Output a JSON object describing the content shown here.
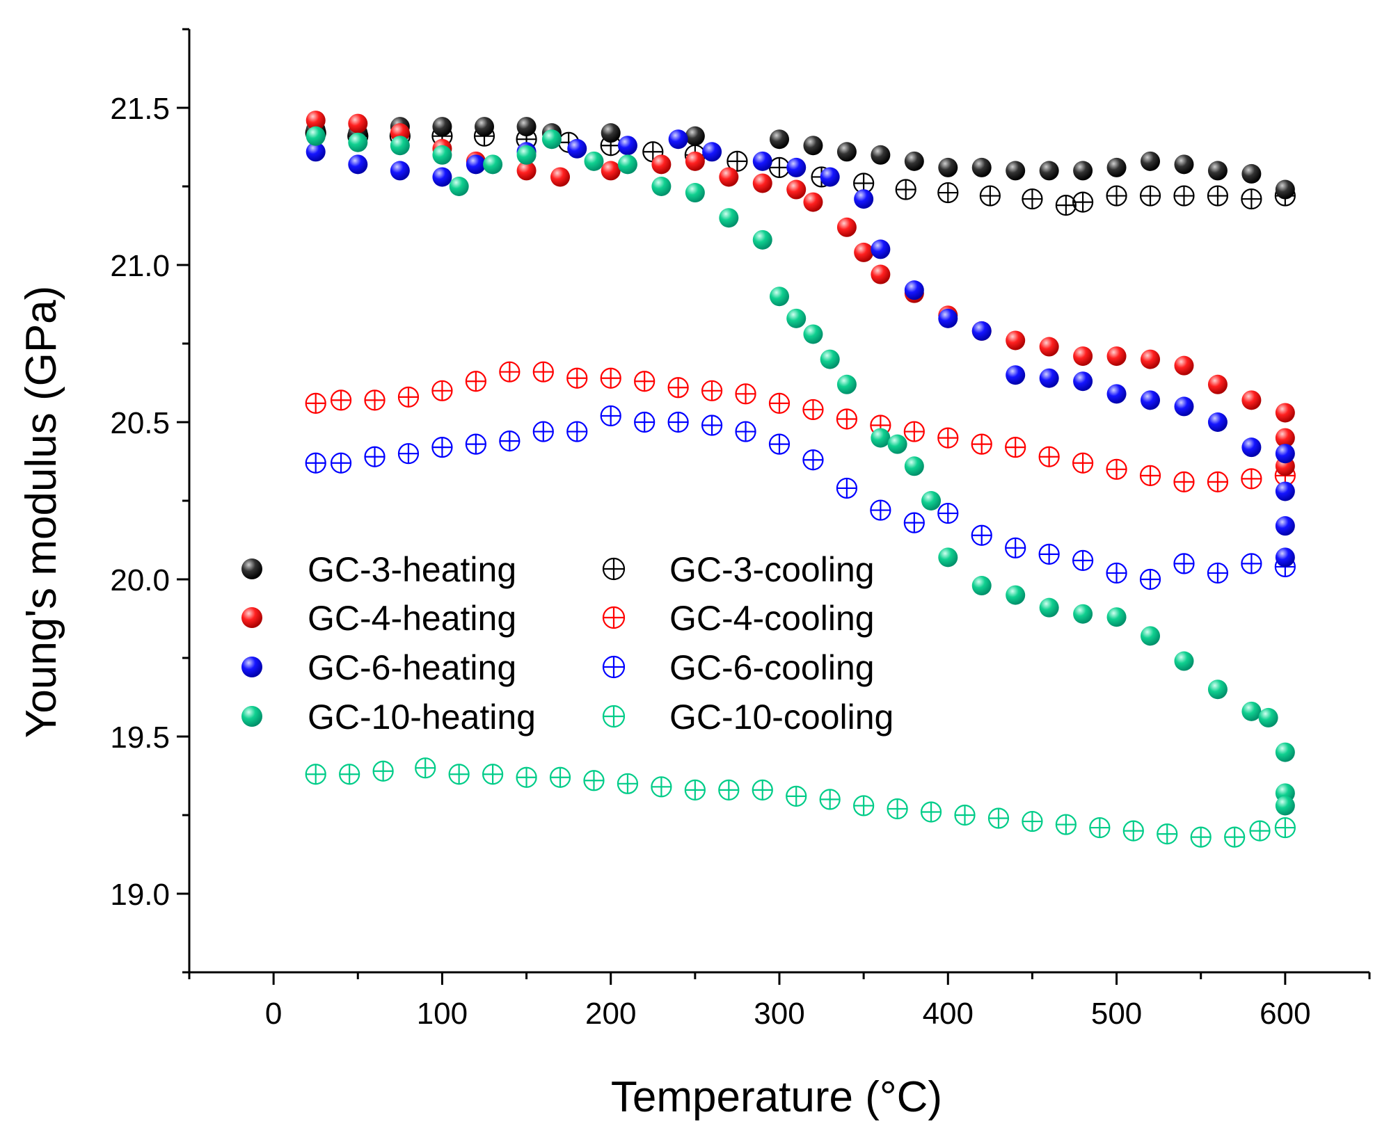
{
  "chart_data": {
    "type": "scatter",
    "title": "",
    "xlabel": "Temperature (°C)",
    "ylabel": "Young's modulus (GPa)",
    "xlim": [
      -50,
      650
    ],
    "ylim": [
      18.75,
      21.75
    ],
    "xticks": [
      0,
      100,
      200,
      300,
      400,
      500,
      600
    ],
    "yticks": [
      19.0,
      19.5,
      20.0,
      20.5,
      21.0,
      21.5
    ],
    "xtick_labels": [
      "0",
      "100",
      "200",
      "300",
      "400",
      "500",
      "600"
    ],
    "ytick_labels": [
      "19.0",
      "19.5",
      "20.0",
      "20.5",
      "21.0",
      "21.5"
    ],
    "grid": false,
    "legend_position": "center-left, two columns",
    "series": [
      {
        "name": "GC-3-heating",
        "color": "#000000",
        "marker": "sphere",
        "points": [
          [
            25,
            21.43
          ],
          [
            50,
            21.42
          ],
          [
            75,
            21.44
          ],
          [
            100,
            21.44
          ],
          [
            125,
            21.44
          ],
          [
            150,
            21.44
          ],
          [
            165,
            21.42
          ],
          [
            200,
            21.42
          ],
          [
            250,
            21.41
          ],
          [
            300,
            21.4
          ],
          [
            320,
            21.38
          ],
          [
            340,
            21.36
          ],
          [
            360,
            21.35
          ],
          [
            380,
            21.33
          ],
          [
            400,
            21.31
          ],
          [
            420,
            21.31
          ],
          [
            440,
            21.3
          ],
          [
            460,
            21.3
          ],
          [
            480,
            21.3
          ],
          [
            500,
            21.31
          ],
          [
            520,
            21.33
          ],
          [
            540,
            21.32
          ],
          [
            560,
            21.3
          ],
          [
            580,
            21.29
          ],
          [
            600,
            21.24
          ]
        ]
      },
      {
        "name": "GC-4-heating",
        "color": "#ff0000",
        "marker": "sphere",
        "points": [
          [
            25,
            21.46
          ],
          [
            50,
            21.45
          ],
          [
            75,
            21.42
          ],
          [
            100,
            21.37
          ],
          [
            120,
            21.33
          ],
          [
            150,
            21.3
          ],
          [
            170,
            21.28
          ],
          [
            200,
            21.3
          ],
          [
            230,
            21.32
          ],
          [
            250,
            21.33
          ],
          [
            270,
            21.28
          ],
          [
            290,
            21.26
          ],
          [
            310,
            21.24
          ],
          [
            320,
            21.2
          ],
          [
            340,
            21.12
          ],
          [
            350,
            21.04
          ],
          [
            360,
            20.97
          ],
          [
            380,
            20.91
          ],
          [
            400,
            20.84
          ],
          [
            420,
            20.79
          ],
          [
            440,
            20.76
          ],
          [
            460,
            20.74
          ],
          [
            480,
            20.71
          ],
          [
            500,
            20.71
          ],
          [
            520,
            20.7
          ],
          [
            540,
            20.68
          ],
          [
            560,
            20.62
          ],
          [
            580,
            20.57
          ],
          [
            600,
            20.53
          ],
          [
            600,
            20.45
          ],
          [
            600,
            20.36
          ]
        ]
      },
      {
        "name": "GC-6-heating",
        "color": "#0000ff",
        "marker": "sphere",
        "points": [
          [
            25,
            21.36
          ],
          [
            50,
            21.32
          ],
          [
            75,
            21.3
          ],
          [
            100,
            21.28
          ],
          [
            120,
            21.32
          ],
          [
            150,
            21.36
          ],
          [
            180,
            21.37
          ],
          [
            210,
            21.38
          ],
          [
            240,
            21.4
          ],
          [
            260,
            21.36
          ],
          [
            290,
            21.33
          ],
          [
            310,
            21.31
          ],
          [
            330,
            21.28
          ],
          [
            350,
            21.21
          ],
          [
            360,
            21.05
          ],
          [
            380,
            20.92
          ],
          [
            400,
            20.83
          ],
          [
            420,
            20.79
          ],
          [
            440,
            20.65
          ],
          [
            460,
            20.64
          ],
          [
            480,
            20.63
          ],
          [
            500,
            20.59
          ],
          [
            520,
            20.57
          ],
          [
            540,
            20.55
          ],
          [
            560,
            20.5
          ],
          [
            580,
            20.42
          ],
          [
            600,
            20.4
          ],
          [
            600,
            20.28
          ],
          [
            600,
            20.17
          ],
          [
            600,
            20.07
          ]
        ]
      },
      {
        "name": "GC-10-heating",
        "color": "#00cc88",
        "marker": "sphere",
        "points": [
          [
            25,
            21.41
          ],
          [
            50,
            21.39
          ],
          [
            75,
            21.38
          ],
          [
            100,
            21.35
          ],
          [
            110,
            21.25
          ],
          [
            130,
            21.32
          ],
          [
            150,
            21.35
          ],
          [
            165,
            21.4
          ],
          [
            190,
            21.33
          ],
          [
            210,
            21.32
          ],
          [
            230,
            21.25
          ],
          [
            250,
            21.23
          ],
          [
            270,
            21.15
          ],
          [
            290,
            21.08
          ],
          [
            300,
            20.9
          ],
          [
            310,
            20.83
          ],
          [
            320,
            20.78
          ],
          [
            330,
            20.7
          ],
          [
            340,
            20.62
          ],
          [
            360,
            20.45
          ],
          [
            370,
            20.43
          ],
          [
            380,
            20.36
          ],
          [
            390,
            20.25
          ],
          [
            400,
            20.07
          ],
          [
            420,
            19.98
          ],
          [
            440,
            19.95
          ],
          [
            460,
            19.91
          ],
          [
            480,
            19.89
          ],
          [
            500,
            19.88
          ],
          [
            520,
            19.82
          ],
          [
            540,
            19.74
          ],
          [
            560,
            19.65
          ],
          [
            580,
            19.58
          ],
          [
            590,
            19.56
          ],
          [
            600,
            19.45
          ],
          [
            600,
            19.32
          ],
          [
            600,
            19.28
          ]
        ]
      },
      {
        "name": "GC-3-cooling",
        "color": "#000000",
        "marker": "circle-plus",
        "points": [
          [
            25,
            21.42
          ],
          [
            50,
            21.41
          ],
          [
            75,
            21.41
          ],
          [
            100,
            21.41
          ],
          [
            125,
            21.41
          ],
          [
            150,
            21.4
          ],
          [
            175,
            21.39
          ],
          [
            200,
            21.38
          ],
          [
            225,
            21.36
          ],
          [
            250,
            21.35
          ],
          [
            275,
            21.33
          ],
          [
            300,
            21.31
          ],
          [
            325,
            21.28
          ],
          [
            350,
            21.26
          ],
          [
            375,
            21.24
          ],
          [
            400,
            21.23
          ],
          [
            425,
            21.22
          ],
          [
            450,
            21.21
          ],
          [
            470,
            21.19
          ],
          [
            480,
            21.2
          ],
          [
            500,
            21.22
          ],
          [
            520,
            21.22
          ],
          [
            540,
            21.22
          ],
          [
            560,
            21.22
          ],
          [
            580,
            21.21
          ],
          [
            600,
            21.22
          ]
        ]
      },
      {
        "name": "GC-4-cooling",
        "color": "#ff0000",
        "marker": "circle-plus",
        "points": [
          [
            25,
            20.56
          ],
          [
            40,
            20.57
          ],
          [
            60,
            20.57
          ],
          [
            80,
            20.58
          ],
          [
            100,
            20.6
          ],
          [
            120,
            20.63
          ],
          [
            140,
            20.66
          ],
          [
            160,
            20.66
          ],
          [
            180,
            20.64
          ],
          [
            200,
            20.64
          ],
          [
            220,
            20.63
          ],
          [
            240,
            20.61
          ],
          [
            260,
            20.6
          ],
          [
            280,
            20.59
          ],
          [
            300,
            20.56
          ],
          [
            320,
            20.54
          ],
          [
            340,
            20.51
          ],
          [
            360,
            20.49
          ],
          [
            380,
            20.47
          ],
          [
            400,
            20.45
          ],
          [
            420,
            20.43
          ],
          [
            440,
            20.42
          ],
          [
            460,
            20.39
          ],
          [
            480,
            20.37
          ],
          [
            500,
            20.35
          ],
          [
            520,
            20.33
          ],
          [
            540,
            20.31
          ],
          [
            560,
            20.31
          ],
          [
            580,
            20.32
          ],
          [
            600,
            20.33
          ]
        ]
      },
      {
        "name": "GC-6-cooling",
        "color": "#0000ff",
        "marker": "circle-plus",
        "points": [
          [
            25,
            20.37
          ],
          [
            40,
            20.37
          ],
          [
            60,
            20.39
          ],
          [
            80,
            20.4
          ],
          [
            100,
            20.42
          ],
          [
            120,
            20.43
          ],
          [
            140,
            20.44
          ],
          [
            160,
            20.47
          ],
          [
            180,
            20.47
          ],
          [
            200,
            20.52
          ],
          [
            220,
            20.5
          ],
          [
            240,
            20.5
          ],
          [
            260,
            20.49
          ],
          [
            280,
            20.47
          ],
          [
            300,
            20.43
          ],
          [
            320,
            20.38
          ],
          [
            340,
            20.29
          ],
          [
            360,
            20.22
          ],
          [
            380,
            20.18
          ],
          [
            400,
            20.21
          ],
          [
            420,
            20.14
          ],
          [
            440,
            20.1
          ],
          [
            460,
            20.08
          ],
          [
            480,
            20.06
          ],
          [
            500,
            20.02
          ],
          [
            520,
            20.0
          ],
          [
            540,
            20.05
          ],
          [
            560,
            20.02
          ],
          [
            580,
            20.05
          ],
          [
            600,
            20.04
          ]
        ]
      },
      {
        "name": "GC-10-cooling",
        "color": "#00cc88",
        "marker": "circle-plus",
        "points": [
          [
            25,
            19.38
          ],
          [
            45,
            19.38
          ],
          [
            65,
            19.39
          ],
          [
            90,
            19.4
          ],
          [
            110,
            19.38
          ],
          [
            130,
            19.38
          ],
          [
            150,
            19.37
          ],
          [
            170,
            19.37
          ],
          [
            190,
            19.36
          ],
          [
            210,
            19.35
          ],
          [
            230,
            19.34
          ],
          [
            250,
            19.33
          ],
          [
            270,
            19.33
          ],
          [
            290,
            19.33
          ],
          [
            310,
            19.31
          ],
          [
            330,
            19.3
          ],
          [
            350,
            19.28
          ],
          [
            370,
            19.27
          ],
          [
            390,
            19.26
          ],
          [
            410,
            19.25
          ],
          [
            430,
            19.24
          ],
          [
            450,
            19.23
          ],
          [
            470,
            19.22
          ],
          [
            490,
            19.21
          ],
          [
            510,
            19.2
          ],
          [
            530,
            19.19
          ],
          [
            550,
            19.18
          ],
          [
            570,
            19.18
          ],
          [
            585,
            19.2
          ],
          [
            600,
            19.21
          ]
        ]
      }
    ]
  }
}
